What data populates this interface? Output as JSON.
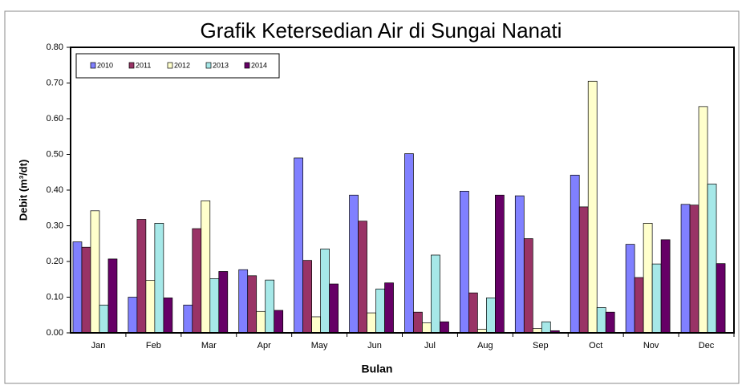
{
  "chart_data": {
    "type": "bar",
    "title": "Grafik Ketersedian Air di Sungai Nanati",
    "x_label": "Bulan",
    "y_label": "Debit (m³/dt)",
    "categories": [
      "Jan",
      "Feb",
      "Mar",
      "Apr",
      "May",
      "Jun",
      "Jul",
      "Aug",
      "Sep",
      "Oct",
      "Nov",
      "Dec"
    ],
    "series": [
      {
        "name": "2010",
        "color": "#8080ff",
        "values": [
          0.255,
          0.1,
          0.078,
          0.177,
          0.49,
          0.386,
          0.502,
          0.397,
          0.384,
          0.442,
          0.248,
          0.36
        ]
      },
      {
        "name": "2011",
        "color": "#993366",
        "values": [
          0.24,
          0.318,
          0.292,
          0.16,
          0.203,
          0.313,
          0.058,
          0.112,
          0.264,
          0.353,
          0.155,
          0.358
        ]
      },
      {
        "name": "2012",
        "color": "#ffffcc",
        "values": [
          0.342,
          0.147,
          0.37,
          0.06,
          0.045,
          0.056,
          0.028,
          0.01,
          0.012,
          0.705,
          0.307,
          0.634
        ]
      },
      {
        "name": "2013",
        "color": "#a6e8e8",
        "values": [
          0.078,
          0.307,
          0.152,
          0.148,
          0.235,
          0.123,
          0.218,
          0.098,
          0.031,
          0.071,
          0.193,
          0.417
        ]
      },
      {
        "name": "2014",
        "color": "#660066",
        "values": [
          0.207,
          0.098,
          0.172,
          0.063,
          0.137,
          0.14,
          0.031,
          0.386,
          0.006,
          0.058,
          0.261,
          0.194
        ]
      }
    ],
    "ylim": [
      0,
      0.8
    ],
    "yticks": [
      {
        "value": 0,
        "label": "0.00"
      },
      {
        "value": 0.1,
        "label": "0.10"
      },
      {
        "value": 0.2,
        "label": "0.20"
      },
      {
        "value": 0.3,
        "label": "0.30"
      },
      {
        "value": 0.4,
        "label": "0.40"
      },
      {
        "value": 0.5,
        "label": "0.50"
      },
      {
        "value": 0.6,
        "label": "0.60"
      },
      {
        "value": 0.7,
        "label": "0.70"
      },
      {
        "value": 0.8,
        "label": "0.80"
      }
    ],
    "legend": "upper left"
  }
}
